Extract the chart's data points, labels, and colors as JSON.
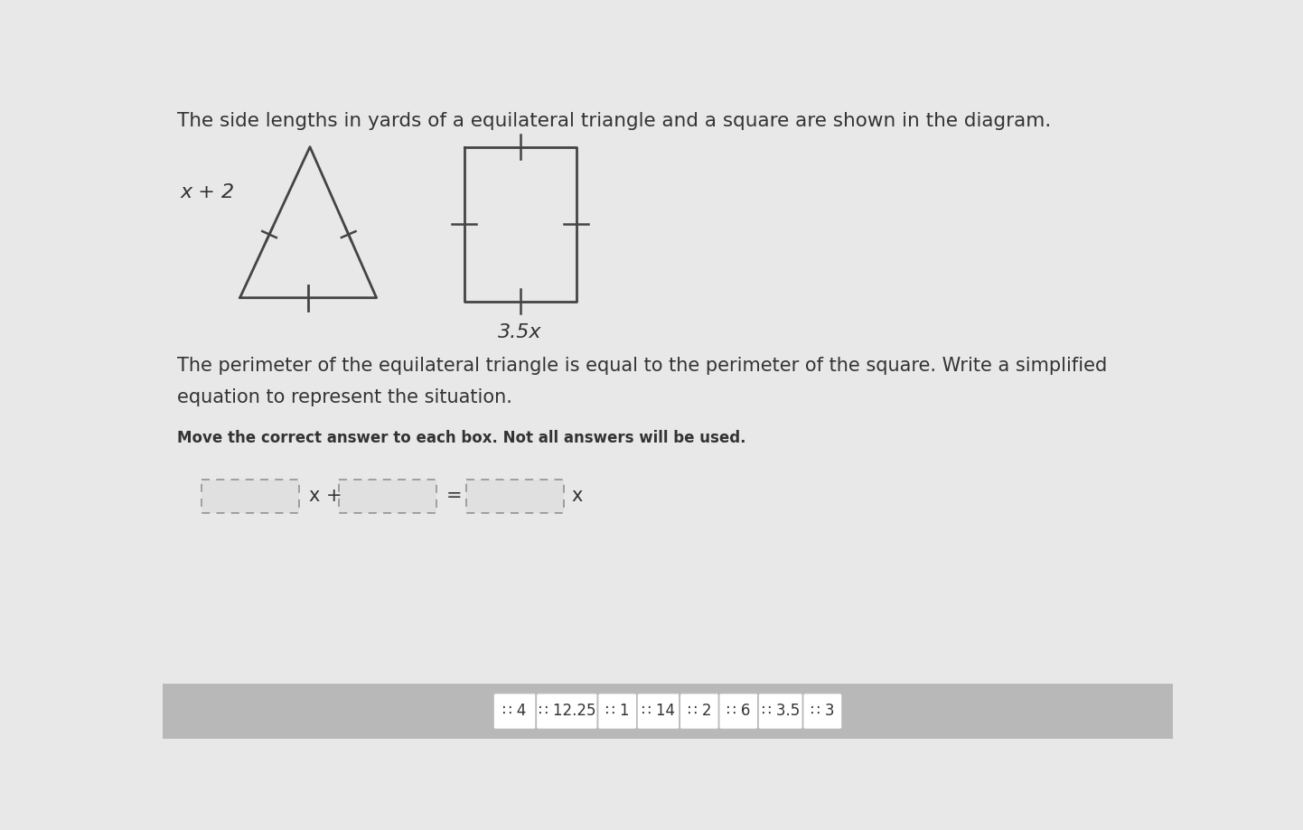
{
  "main_bg": "#e8e8e8",
  "content_bg": "#ececec",
  "white": "#ffffff",
  "title_text": "The side lengths in yards of a equilateral triangle and a square are shown in the diagram.",
  "title_fontsize": 15.5,
  "triangle_label": "x + 2",
  "square_label": "3.5x",
  "body_text1": "The perimeter of the equilateral triangle is equal to the perimeter of the square. Write a simplified",
  "body_text2": "equation to represent the situation.",
  "instruction_text": "Move the correct answer to each box. Not all answers will be used.",
  "answer_tiles": [
    "4",
    "12.25",
    "1",
    "14",
    "2",
    "6",
    "3.5",
    "3"
  ],
  "box_color": "#ffffff",
  "dashed_box_color": "#999999",
  "bottom_bar_color": "#b8b8b8",
  "text_color": "#333333",
  "shape_color": "#444444",
  "tile_border": "#bbbbbb"
}
